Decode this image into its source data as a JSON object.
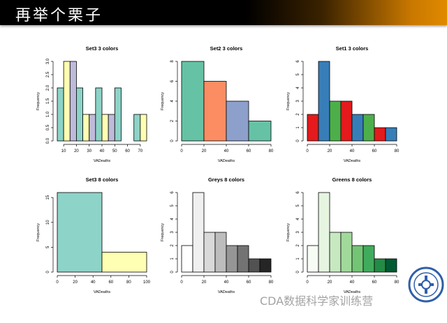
{
  "slide": {
    "title": "再举个栗子"
  },
  "watermark": {
    "text": "CDA数据科学家训练营"
  },
  "colors": {
    "banner_dark": "#000000",
    "banner_accent": "#e08a00"
  },
  "chart_data": [
    {
      "type": "bar",
      "title": "Set3 3 colors",
      "xlabel": "VADeaths",
      "ylabel": "Frequency",
      "xlim": [
        5,
        75
      ],
      "ylim": [
        0,
        3
      ],
      "xticks": [
        10,
        20,
        30,
        40,
        50,
        60,
        70
      ],
      "yticks": [
        "0.0",
        "0.5",
        "1.0",
        "1.5",
        "2.0",
        "2.5",
        "3.0"
      ],
      "bins": [
        {
          "x0": 5,
          "x1": 10,
          "value": 2
        },
        {
          "x0": 10,
          "x1": 15,
          "value": 3
        },
        {
          "x0": 15,
          "x1": 20,
          "value": 3
        },
        {
          "x0": 20,
          "x1": 25,
          "value": 2
        },
        {
          "x0": 25,
          "x1": 30,
          "value": 1
        },
        {
          "x0": 30,
          "x1": 35,
          "value": 1
        },
        {
          "x0": 35,
          "x1": 40,
          "value": 2
        },
        {
          "x0": 40,
          "x1": 45,
          "value": 1
        },
        {
          "x0": 45,
          "x1": 50,
          "value": 1
        },
        {
          "x0": 50,
          "x1": 55,
          "value": 2
        },
        {
          "x0": 55,
          "x1": 60,
          "value": 0
        },
        {
          "x0": 60,
          "x1": 65,
          "value": 0
        },
        {
          "x0": 65,
          "x1": 70,
          "value": 1
        },
        {
          "x0": 70,
          "x1": 75,
          "value": 1
        }
      ],
      "palette": [
        "#8dd3c7",
        "#ffffb3",
        "#bebada"
      ]
    },
    {
      "type": "bar",
      "title": "Set2 3 colors",
      "xlabel": "VADeaths",
      "ylabel": "Frequency",
      "xlim": [
        0,
        80
      ],
      "ylim": [
        0,
        8
      ],
      "xticks": [
        0,
        20,
        40,
        60,
        80
      ],
      "yticks": [
        "0",
        "2",
        "4",
        "6",
        "8"
      ],
      "bins": [
        {
          "x0": 0,
          "x1": 20,
          "value": 8
        },
        {
          "x0": 20,
          "x1": 40,
          "value": 6
        },
        {
          "x0": 40,
          "x1": 60,
          "value": 4
        },
        {
          "x0": 60,
          "x1": 80,
          "value": 2
        }
      ],
      "palette": [
        "#66c2a5",
        "#fc8d62",
        "#8da0cb"
      ]
    },
    {
      "type": "bar",
      "title": "Set1 3 colors",
      "xlabel": "VADeaths",
      "ylabel": "Frequency",
      "xlim": [
        0,
        80
      ],
      "ylim": [
        0,
        6
      ],
      "xticks": [
        0,
        20,
        40,
        60,
        80
      ],
      "yticks": [
        "0",
        "1",
        "2",
        "3",
        "4",
        "5",
        "6"
      ],
      "bins": [
        {
          "x0": 0,
          "x1": 10,
          "value": 2
        },
        {
          "x0": 10,
          "x1": 20,
          "value": 6
        },
        {
          "x0": 20,
          "x1": 30,
          "value": 3
        },
        {
          "x0": 30,
          "x1": 40,
          "value": 3
        },
        {
          "x0": 40,
          "x1": 50,
          "value": 2
        },
        {
          "x0": 50,
          "x1": 60,
          "value": 2
        },
        {
          "x0": 60,
          "x1": 70,
          "value": 1
        },
        {
          "x0": 70,
          "x1": 80,
          "value": 1
        }
      ],
      "palette": [
        "#e41a1c",
        "#377eb8",
        "#4daf4a"
      ]
    },
    {
      "type": "bar",
      "title": "Set3 8 colors",
      "xlabel": "VADeaths",
      "ylabel": "Frequency",
      "xlim": [
        0,
        100
      ],
      "ylim": [
        0,
        16
      ],
      "xticks": [
        0,
        20,
        40,
        60,
        80,
        100
      ],
      "yticks": [
        "0",
        "5",
        "10",
        "15"
      ],
      "bins": [
        {
          "x0": 0,
          "x1": 50,
          "value": 16
        },
        {
          "x0": 50,
          "x1": 100,
          "value": 4
        }
      ],
      "palette": [
        "#8dd3c7",
        "#ffffb3"
      ]
    },
    {
      "type": "bar",
      "title": "Greys 8 colors",
      "xlabel": "VADeaths",
      "ylabel": "Frequency",
      "xlim": [
        0,
        80
      ],
      "ylim": [
        0,
        6
      ],
      "xticks": [
        0,
        20,
        40,
        60,
        80
      ],
      "yticks": [
        "0",
        "1",
        "2",
        "3",
        "4",
        "5",
        "6"
      ],
      "bins": [
        {
          "x0": 0,
          "x1": 10,
          "value": 2
        },
        {
          "x0": 10,
          "x1": 20,
          "value": 6
        },
        {
          "x0": 20,
          "x1": 30,
          "value": 3
        },
        {
          "x0": 30,
          "x1": 40,
          "value": 3
        },
        {
          "x0": 40,
          "x1": 50,
          "value": 2
        },
        {
          "x0": 50,
          "x1": 60,
          "value": 2
        },
        {
          "x0": 60,
          "x1": 70,
          "value": 1
        },
        {
          "x0": 70,
          "x1": 80,
          "value": 1
        }
      ],
      "palette": [
        "#ffffff",
        "#f0f0f0",
        "#d9d9d9",
        "#bdbdbd",
        "#969696",
        "#737373",
        "#525252",
        "#252525"
      ]
    },
    {
      "type": "bar",
      "title": "Greens 8 colors",
      "xlabel": "VADeaths",
      "ylabel": "Frequency",
      "xlim": [
        0,
        80
      ],
      "ylim": [
        0,
        6
      ],
      "xticks": [
        0,
        20,
        40,
        60,
        80
      ],
      "yticks": [
        "0",
        "1",
        "2",
        "3",
        "4",
        "5",
        "6"
      ],
      "bins": [
        {
          "x0": 0,
          "x1": 10,
          "value": 2
        },
        {
          "x0": 10,
          "x1": 20,
          "value": 6
        },
        {
          "x0": 20,
          "x1": 30,
          "value": 3
        },
        {
          "x0": 30,
          "x1": 40,
          "value": 3
        },
        {
          "x0": 40,
          "x1": 50,
          "value": 2
        },
        {
          "x0": 50,
          "x1": 60,
          "value": 2
        },
        {
          "x0": 60,
          "x1": 70,
          "value": 1
        },
        {
          "x0": 70,
          "x1": 80,
          "value": 1
        }
      ],
      "palette": [
        "#f7fcf5",
        "#e5f5e0",
        "#c7e9c0",
        "#a1d99b",
        "#74c476",
        "#41ab5d",
        "#238b45",
        "#005a32"
      ]
    }
  ]
}
